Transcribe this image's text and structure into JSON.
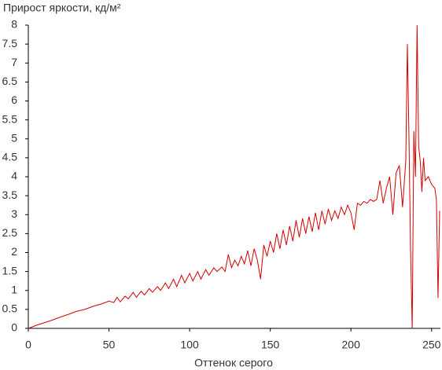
{
  "chart_data": {
    "type": "line",
    "title": "Прирост яркости, кд/м²",
    "x_label": "Оттенок серого",
    "x": [
      0,
      5,
      10,
      15,
      20,
      25,
      30,
      35,
      40,
      45,
      50,
      53,
      55,
      57,
      60,
      62,
      65,
      67,
      70,
      72,
      75,
      77,
      80,
      82,
      85,
      87,
      90,
      92,
      95,
      97,
      100,
      102,
      105,
      107,
      110,
      112,
      115,
      117,
      120,
      122,
      124,
      126,
      128,
      130,
      132,
      134,
      136,
      138,
      140,
      142,
      144,
      146,
      148,
      150,
      152,
      154,
      156,
      158,
      160,
      162,
      164,
      166,
      168,
      170,
      172,
      174,
      176,
      178,
      180,
      182,
      184,
      186,
      188,
      190,
      192,
      194,
      196,
      198,
      200,
      202,
      204,
      206,
      208,
      210,
      212,
      214,
      216,
      218,
      220,
      222,
      224,
      226,
      228,
      230,
      232,
      234,
      235,
      236,
      237,
      238,
      239,
      240,
      241,
      242,
      243,
      244,
      245,
      246,
      248,
      250,
      252,
      253,
      254,
      255
    ],
    "series": [
      {
        "color": "#d40000",
        "values": [
          0,
          0.08,
          0.15,
          0.22,
          0.3,
          0.37,
          0.45,
          0.5,
          0.58,
          0.64,
          0.72,
          0.68,
          0.82,
          0.7,
          0.85,
          0.78,
          0.95,
          0.82,
          0.98,
          0.88,
          1.05,
          0.95,
          1.1,
          1.0,
          1.2,
          1.05,
          1.3,
          1.1,
          1.4,
          1.2,
          1.45,
          1.25,
          1.5,
          1.3,
          1.55,
          1.4,
          1.6,
          1.5,
          1.62,
          1.5,
          1.95,
          1.6,
          1.8,
          1.65,
          1.9,
          1.7,
          2.05,
          1.65,
          2.1,
          1.8,
          1.3,
          2.2,
          1.9,
          2.3,
          2.0,
          2.5,
          2.1,
          2.6,
          2.2,
          2.7,
          2.3,
          2.85,
          2.4,
          2.9,
          2.5,
          2.95,
          2.55,
          3.05,
          2.6,
          3.1,
          2.75,
          3.15,
          2.85,
          3.1,
          2.9,
          3.2,
          3.0,
          3.25,
          3.05,
          2.6,
          3.3,
          3.25,
          3.35,
          3.3,
          3.4,
          3.35,
          3.4,
          3.9,
          3.3,
          3.7,
          4.0,
          3.0,
          4.1,
          4.3,
          3.2,
          4.4,
          7.5,
          5.0,
          2.0,
          0,
          5.2,
          4.0,
          8,
          4.8,
          4.4,
          3.6,
          4.5,
          3.9,
          4.0,
          3.8,
          3.7,
          3.4,
          0.8,
          3.1
        ]
      }
    ],
    "xlim": [
      0,
      255
    ],
    "ylim": [
      0,
      8
    ],
    "xticks": [
      0,
      50,
      100,
      150,
      200,
      250
    ],
    "yticks": [
      0,
      0.5,
      1,
      1.5,
      2,
      2.5,
      3,
      3.5,
      4,
      4.5,
      5,
      5.5,
      6,
      6.5,
      7,
      7.5,
      8
    ]
  }
}
